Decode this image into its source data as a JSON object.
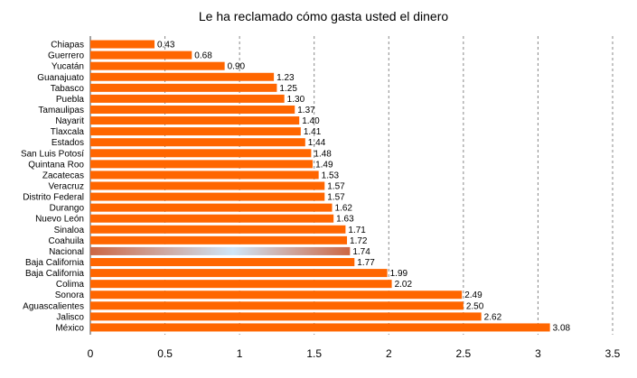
{
  "chart_data": {
    "type": "bar",
    "orientation": "horizontal",
    "title": "Le ha reclamado cómo gasta usted el dinero",
    "categories": [
      "Chiapas",
      "Guerrero",
      "Yucatán",
      "Guanajuato",
      "Tabasco",
      "Puebla",
      "Tamaulipas",
      "Nayarit",
      "Tlaxcala",
      "Estados",
      "San Luis Potosí",
      "Quintana Roo",
      "Zacatecas",
      "Veracruz",
      "Distrito Federal",
      "Durango",
      "Nuevo León",
      "Sinaloa",
      "Coahuila",
      "Nacional",
      "Baja California",
      "Baja California",
      "Colima",
      "Sonora",
      "Aguascalientes",
      "Jalisco",
      "México"
    ],
    "values": [
      0.43,
      0.68,
      0.9,
      1.23,
      1.25,
      1.3,
      1.37,
      1.4,
      1.41,
      1.44,
      1.48,
      1.49,
      1.53,
      1.57,
      1.57,
      1.62,
      1.63,
      1.71,
      1.72,
      1.74,
      1.77,
      1.99,
      2.02,
      2.49,
      2.5,
      2.62,
      3.08
    ],
    "value_labels": [
      "0.43",
      "0.68",
      "0.90",
      "1.23",
      "1.25",
      "1.30",
      "1.37",
      "1.40",
      "1.41",
      "1.44",
      "1.48",
      "1.49",
      "1.53",
      "1.57",
      "1.57",
      "1.62",
      "1.63",
      "1.71",
      "1.72",
      "1.74",
      "1.77",
      "1.99",
      "2.02",
      "2.49",
      "2.50",
      "2.62",
      "3.08"
    ],
    "highlight": "Nacional",
    "xlim": [
      0,
      3.5
    ],
    "xticks": [
      "0",
      "0.5",
      "1",
      "1.5",
      "2",
      "2.5",
      "3",
      "3.5"
    ],
    "xtick_values": [
      0,
      0.5,
      1,
      1.5,
      2,
      2.5,
      3,
      3.5
    ],
    "grid": "vertical dashed",
    "bar_color": "#ff6600",
    "highlight_colors": [
      "#cc6644",
      "#cfe6f8"
    ],
    "grid_color": "#888888"
  }
}
